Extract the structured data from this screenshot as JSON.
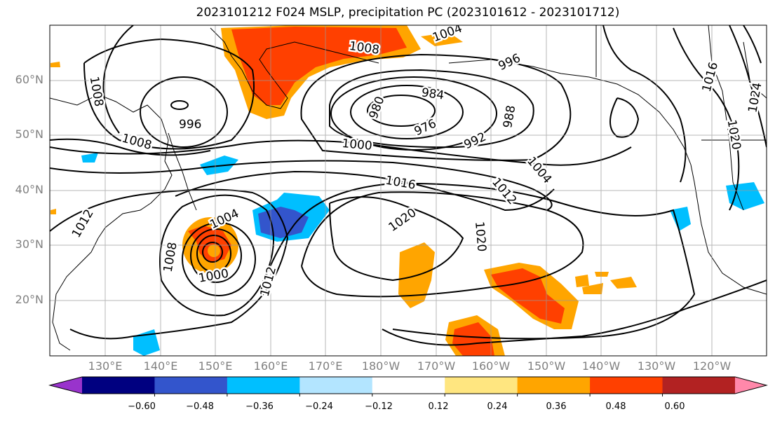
{
  "title": "2023101212 F024 MSLP, precipitation PC (2023101612 - 2023101712)",
  "lat_labels": [
    "60°N",
    "50°N",
    "40°N",
    "30°N",
    "20°N"
  ],
  "lon_labels": [
    "130°E",
    "140°E",
    "150°E",
    "160°E",
    "170°E",
    "180°W",
    "170°W",
    "160°W",
    "150°W",
    "140°W",
    "130°W",
    "120°W"
  ],
  "isobar_labels": [
    "1008",
    "1008",
    "1004",
    "996",
    "996",
    "1008",
    "1000",
    "984",
    "980",
    "976",
    "988",
    "992",
    "1004",
    "1012",
    "1016",
    "1020",
    "1020",
    "1004",
    "1008",
    "1000",
    "1012",
    "1012",
    "1016",
    "1020",
    "1024"
  ],
  "colorbar": {
    "colors": [
      "#9933cc",
      "#000080",
      "#3355cc",
      "#00bfff",
      "#b3e5ff",
      "#ffffff",
      "#ffe680",
      "#ffa500",
      "#ff4000",
      "#b22222",
      "#ff88aa"
    ],
    "tick_labels": [
      "−0.60",
      "−0.48",
      "−0.36",
      "−0.24",
      "−0.12",
      "0.12",
      "0.24",
      "0.36",
      "0.48",
      "0.60"
    ]
  }
}
